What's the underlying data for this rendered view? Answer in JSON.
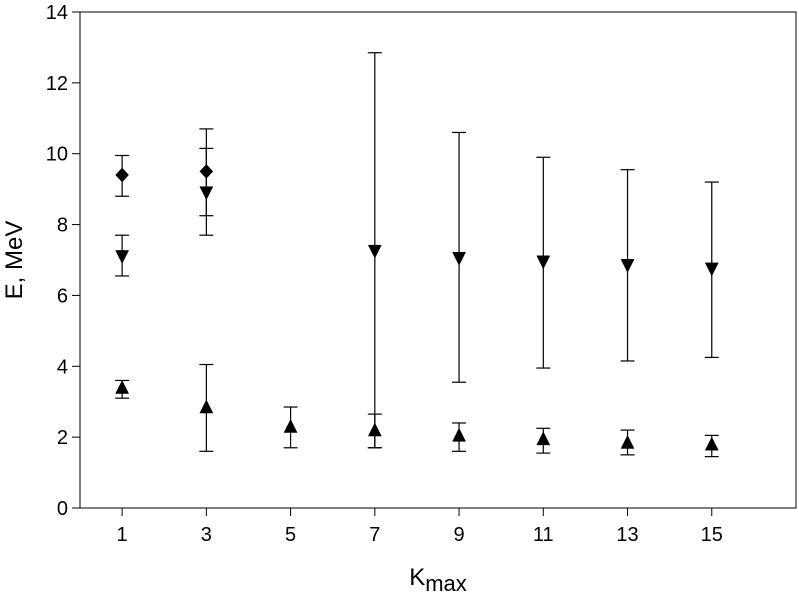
{
  "chart_data": {
    "type": "scatter",
    "title": "",
    "xlabel": "K",
    "xlabel_sub": "max",
    "ylabel": "E, MeV",
    "xlim": [
      0,
      17
    ],
    "ylim": [
      0,
      14
    ],
    "xticks": [
      1,
      3,
      5,
      7,
      9,
      11,
      13,
      15
    ],
    "yticks": [
      0,
      2,
      4,
      6,
      8,
      10,
      12,
      14
    ],
    "grid": false,
    "series": [
      {
        "marker": "diamond",
        "points": [
          {
            "x": 1,
            "y": 9.4,
            "err_low": 8.8,
            "err_high": 9.95
          },
          {
            "x": 3,
            "y": 9.5,
            "err_low": 8.25,
            "err_high": 10.7
          }
        ]
      },
      {
        "marker": "triangle-down",
        "points": [
          {
            "x": 1,
            "y": 7.1,
            "err_low": 6.55,
            "err_high": 7.7
          },
          {
            "x": 3,
            "y": 8.9,
            "err_low": 7.7,
            "err_high": 10.15
          },
          {
            "x": 7,
            "y": 7.25,
            "err_low": 1.7,
            "err_high": 12.85
          },
          {
            "x": 9,
            "y": 7.05,
            "err_low": 3.55,
            "err_high": 10.6
          },
          {
            "x": 11,
            "y": 6.95,
            "err_low": 3.95,
            "err_high": 9.9
          },
          {
            "x": 13,
            "y": 6.85,
            "err_low": 4.15,
            "err_high": 9.55
          },
          {
            "x": 15,
            "y": 6.75,
            "err_low": 4.25,
            "err_high": 9.2
          }
        ]
      },
      {
        "marker": "triangle-up",
        "points": [
          {
            "x": 1,
            "y": 3.4,
            "err_low": 3.1,
            "err_high": 3.6
          },
          {
            "x": 3,
            "y": 2.85,
            "err_low": 1.6,
            "err_high": 4.05
          },
          {
            "x": 5,
            "y": 2.3,
            "err_low": 1.7,
            "err_high": 2.85
          },
          {
            "x": 7,
            "y": 2.2,
            "err_low": 1.7,
            "err_high": 2.65
          },
          {
            "x": 9,
            "y": 2.05,
            "err_low": 1.6,
            "err_high": 2.4
          },
          {
            "x": 11,
            "y": 1.95,
            "err_low": 1.55,
            "err_high": 2.25
          },
          {
            "x": 13,
            "y": 1.85,
            "err_low": 1.5,
            "err_high": 2.2
          },
          {
            "x": 15,
            "y": 1.8,
            "err_low": 1.45,
            "err_high": 2.05
          }
        ]
      }
    ]
  }
}
